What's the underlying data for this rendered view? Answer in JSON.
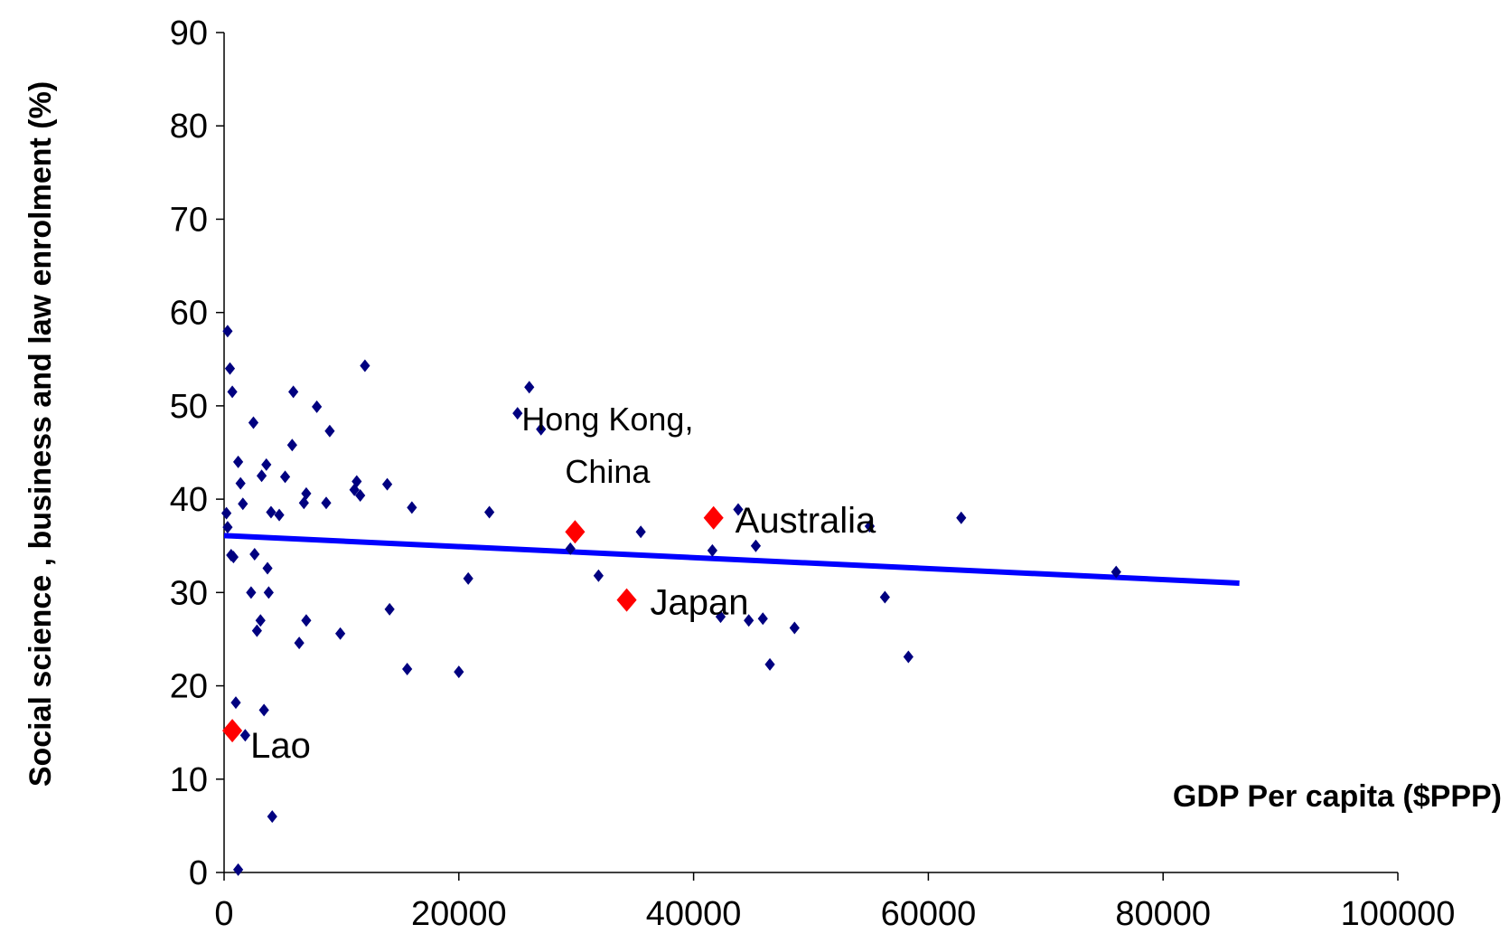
{
  "chart_data": {
    "type": "scatter",
    "title": "",
    "xlabel": "GDP Per capita ($PPP)",
    "ylabel": "Social science , business and law enrolment (%)",
    "xlim": [
      0,
      100000
    ],
    "ylim": [
      0,
      90
    ],
    "xticks": [
      "0",
      "20000",
      "40000",
      "60000",
      "80000",
      "100000"
    ],
    "yticks": [
      "0",
      "10",
      "20",
      "30",
      "40",
      "50",
      "60",
      "70",
      "80",
      "90"
    ],
    "grid": false,
    "colors": {
      "points": "#000080",
      "highlight": "#ff0000",
      "trend": "#0000ff"
    },
    "series": [
      {
        "points": [
          [
            300,
            58
          ],
          [
            500,
            54
          ],
          [
            700,
            51.5
          ],
          [
            200,
            38.5
          ],
          [
            300,
            37
          ],
          [
            600,
            34
          ],
          [
            800,
            33.8
          ],
          [
            1000,
            18.2
          ],
          [
            1200,
            0.3
          ],
          [
            1200,
            44
          ],
          [
            1400,
            41.7
          ],
          [
            1600,
            39.5
          ],
          [
            1800,
            14.7
          ],
          [
            2300,
            30
          ],
          [
            2500,
            48.2
          ],
          [
            2600,
            34.1
          ],
          [
            2800,
            25.9
          ],
          [
            3100,
            27
          ],
          [
            3200,
            42.5
          ],
          [
            3400,
            17.4
          ],
          [
            3600,
            43.7
          ],
          [
            3700,
            32.6
          ],
          [
            3800,
            30
          ],
          [
            4000,
            38.6
          ],
          [
            4100,
            6
          ],
          [
            4700,
            38.3
          ],
          [
            5200,
            42.4
          ],
          [
            5800,
            45.8
          ],
          [
            5900,
            51.5
          ],
          [
            6400,
            24.6
          ],
          [
            6800,
            39.6
          ],
          [
            7000,
            40.6
          ],
          [
            7000,
            27
          ],
          [
            7900,
            49.9
          ],
          [
            8700,
            39.6
          ],
          [
            9000,
            47.3
          ],
          [
            9900,
            25.6
          ],
          [
            11100,
            41
          ],
          [
            11300,
            41.9
          ],
          [
            11600,
            40.4
          ],
          [
            12000,
            54.3
          ],
          [
            13900,
            41.6
          ],
          [
            14100,
            28.2
          ],
          [
            15600,
            21.8
          ],
          [
            16000,
            39.1
          ],
          [
            20000,
            21.5
          ],
          [
            20800,
            31.5
          ],
          [
            22600,
            38.6
          ],
          [
            25000,
            49.2
          ],
          [
            26000,
            52
          ],
          [
            27000,
            47.5
          ],
          [
            29500,
            34.7
          ],
          [
            31900,
            31.8
          ],
          [
            35500,
            36.5
          ],
          [
            41600,
            34.5
          ],
          [
            42300,
            27.4
          ],
          [
            43800,
            38.9
          ],
          [
            44700,
            27
          ],
          [
            45300,
            35
          ],
          [
            45900,
            27.2
          ],
          [
            46500,
            22.3
          ],
          [
            48600,
            26.2
          ],
          [
            55000,
            37.1
          ],
          [
            56300,
            29.5
          ],
          [
            58300,
            23.1
          ],
          [
            62800,
            38
          ],
          [
            76000,
            32.2
          ]
        ]
      },
      {
        "points": [
          {
            "x": 700,
            "y": 15.2,
            "label": "Lao"
          },
          {
            "x": 29900,
            "y": 36.5,
            "label": "Hong Kong,\nChina"
          },
          {
            "x": 34300,
            "y": 29.2,
            "label": "Japan"
          },
          {
            "x": 41700,
            "y": 38,
            "label": "Australia"
          }
        ]
      }
    ],
    "trendline": {
      "x": [
        0,
        86500
      ],
      "y": [
        36.1,
        31
      ]
    }
  }
}
